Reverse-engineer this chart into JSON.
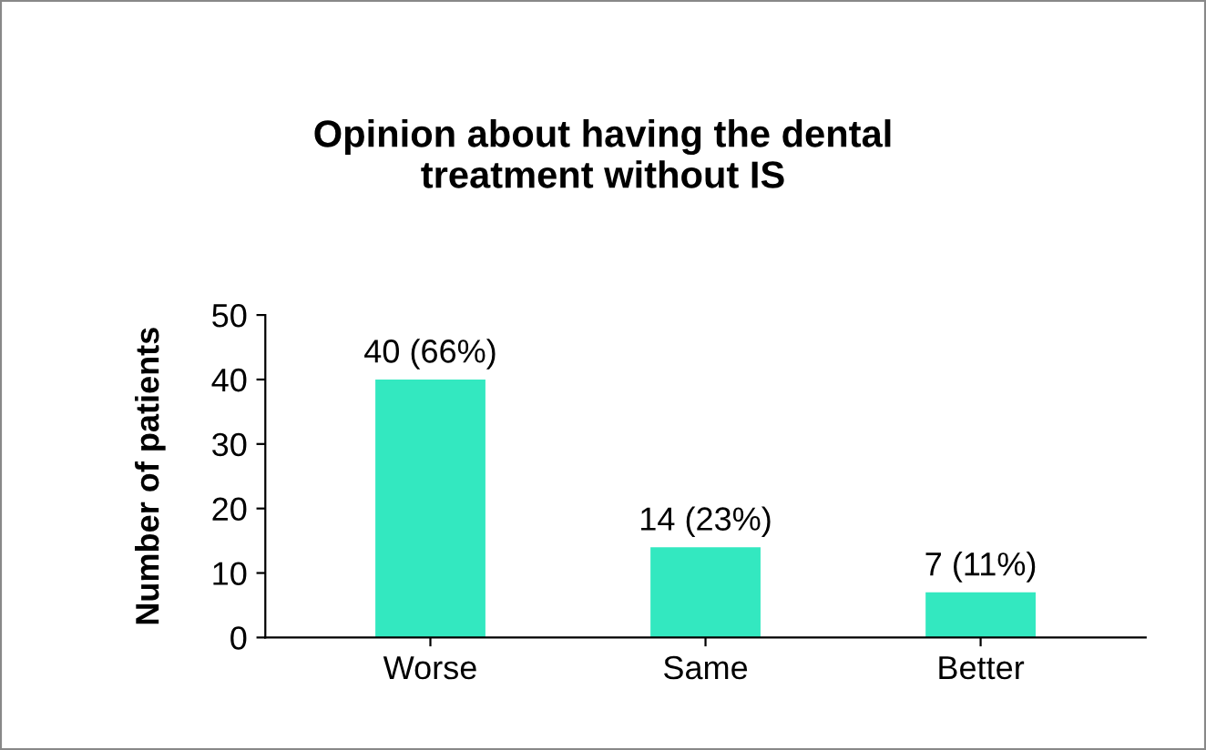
{
  "chart_data": {
    "type": "bar",
    "title": "Opinion about having the dental\ntreatment without IS",
    "ylabel": "Number of patients",
    "categories": [
      "Worse",
      "Same",
      "Better"
    ],
    "values": [
      40,
      14,
      7
    ],
    "color": "#33e8c0",
    "value_labels": [
      "40 (66%)",
      "14 (23%)",
      "7 (11%)"
    ],
    "ylim": [
      0,
      50
    ],
    "yticks": [
      0,
      10,
      20,
      30,
      40,
      50
    ],
    "grid": false,
    "legend": false
  }
}
